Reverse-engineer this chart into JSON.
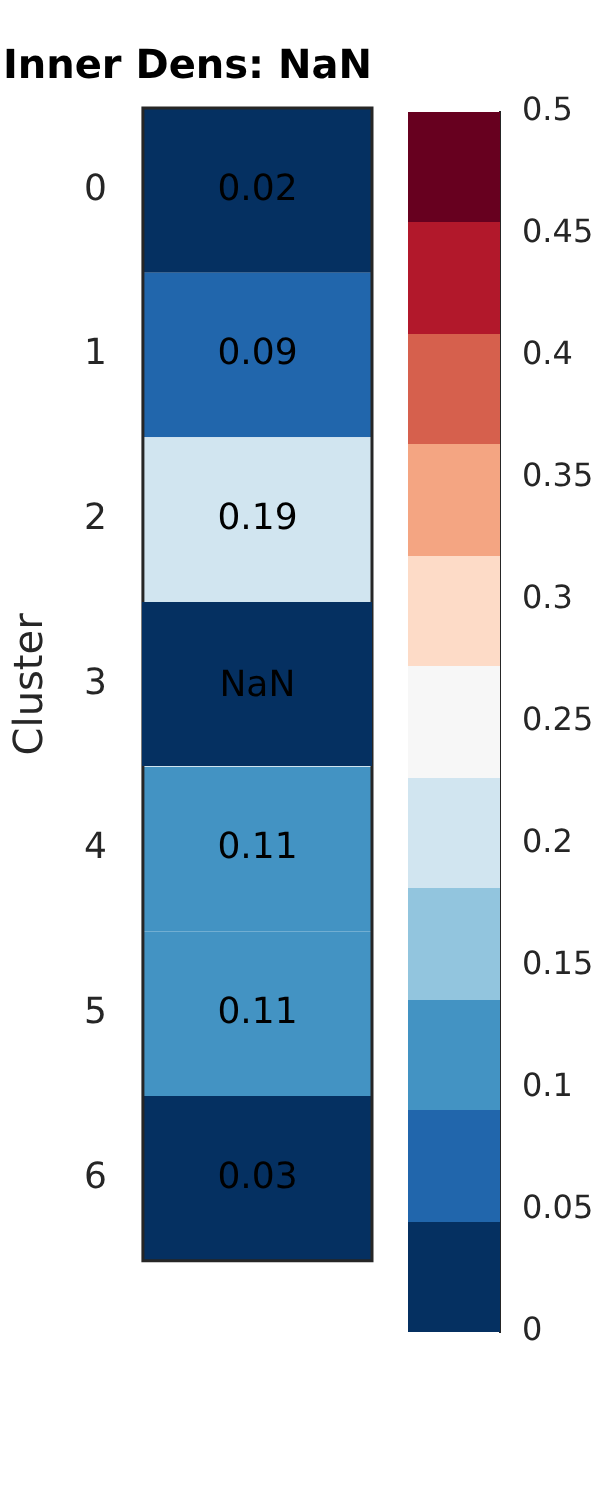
{
  "chart_data": {
    "type": "heatmap",
    "title": "Inner Dens: NaN",
    "ylabel": "Cluster",
    "categories": [
      null
    ],
    "y_categories": [
      "0",
      "1",
      "2",
      "3",
      "4",
      "5",
      "6"
    ],
    "cells": [
      [
        0.02
      ],
      [
        0.09
      ],
      [
        0.19
      ],
      [
        null
      ],
      [
        0.11
      ],
      [
        0.11
      ],
      [
        0.03
      ]
    ],
    "cell_labels": [
      [
        "0.02"
      ],
      [
        "0.09"
      ],
      [
        "0.19"
      ],
      [
        "NaN"
      ],
      [
        "0.11"
      ],
      [
        "0.11"
      ],
      [
        "0.03"
      ]
    ],
    "clim": [
      0,
      0.5
    ],
    "cticks": [
      0,
      0.05,
      0.1,
      0.15,
      0.2,
      0.25,
      0.3,
      0.35,
      0.4,
      0.45,
      0.5
    ]
  }
}
